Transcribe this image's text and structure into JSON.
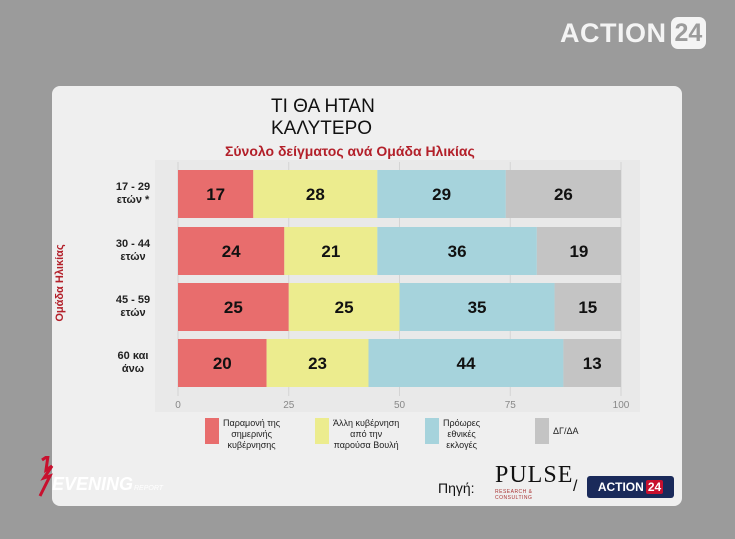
{
  "channel_logo": {
    "word": "ACTION",
    "number": "24"
  },
  "chart_data": {
    "type": "bar",
    "orientation": "horizontal-stacked",
    "title_lines": [
      "ΤΙ ΘΑ ΗΤΑΝ",
      "ΚΑΛΥΤΕΡΟ"
    ],
    "subtitle": "Σύνολο δείγματος ανά Ομάδα Ηλικίας",
    "ylabel": "Ομάδα Ηλικίας",
    "categories": [
      [
        "17 - 29",
        "ετών *"
      ],
      [
        "30 - 44",
        "ετών"
      ],
      [
        "45 - 59",
        "ετών"
      ],
      [
        "60 και",
        "άνω"
      ]
    ],
    "series": [
      {
        "name": "Παραμονή της σημερινής κυβέρνησης",
        "legend_lines": [
          "Παραμονή της",
          "σημερινής",
          "κυβέρνησης"
        ],
        "color": "#e86d6d",
        "values": [
          17,
          24,
          25,
          20
        ]
      },
      {
        "name": "Άλλη κυβέρνηση από την παρούσα Βουλή",
        "legend_lines": [
          "Άλλη κυβέρνηση",
          "από την",
          "παρούσα Βουλή"
        ],
        "color": "#ecec8e",
        "values": [
          28,
          21,
          25,
          23
        ]
      },
      {
        "name": "Πρόωρες εθνικές εκλογές",
        "legend_lines": [
          "Πρόωρες",
          "εθνικές",
          "εκλογές"
        ],
        "color": "#a6d3dc",
        "values": [
          29,
          36,
          35,
          44
        ]
      },
      {
        "name": "ΔΓ/ΔΑ",
        "legend_lines": [
          "ΔΓ/ΔΑ"
        ],
        "color": "#c4c4c4",
        "values": [
          26,
          19,
          15,
          13
        ]
      }
    ],
    "xlim": [
      0,
      100
    ],
    "xticks": [
      "0",
      "25",
      "50",
      "75",
      "100"
    ],
    "legend_position": "bottom"
  },
  "show_brand": {
    "evening": "EVENING",
    "report": "REPORT"
  },
  "source": {
    "label": "Πηγή:",
    "pulse_word": "PULSE",
    "pulse_sub": "RESEARCH & CONSULTING",
    "separator": "/",
    "logo_word": "ACTION",
    "logo_number": "24"
  }
}
